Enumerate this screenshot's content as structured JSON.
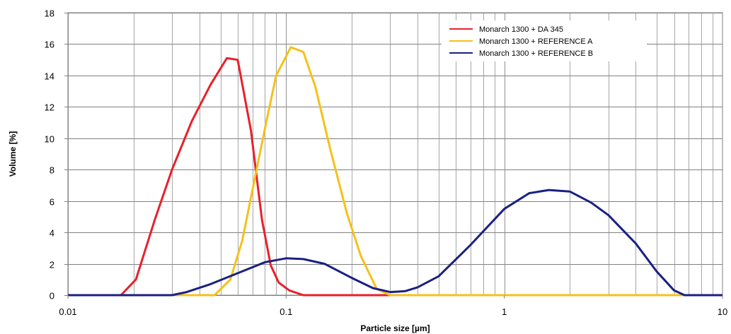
{
  "chart_data": {
    "type": "line",
    "xlabel": "Particle size [µm]",
    "ylabel": "Volume [%]",
    "xscale": "log",
    "xlim": [
      0.01,
      10
    ],
    "ylim": [
      0,
      18
    ],
    "x_ticks": [
      "0.01",
      "0.1",
      "1",
      "10"
    ],
    "y_ticks": [
      "0",
      "2",
      "4",
      "6",
      "8",
      "10",
      "12",
      "14",
      "16",
      "18"
    ],
    "grid": true,
    "legend_position": "top-right",
    "series": [
      {
        "name": "Monarch 1300 + DA 345",
        "color": "#e8202a",
        "x": [
          0.01,
          0.0175,
          0.0205,
          0.025,
          0.03,
          0.037,
          0.045,
          0.0535,
          0.06,
          0.069,
          0.0775,
          0.085,
          0.0925,
          0.1035,
          0.12,
          1.0,
          10
        ],
        "y": [
          0,
          0,
          1.0,
          4.8,
          8.0,
          11.1,
          13.4,
          15.1,
          15.0,
          10.5,
          4.8,
          1.9,
          0.8,
          0.3,
          0,
          0,
          0
        ]
      },
      {
        "name": "Monarch 1300 + REFERENCE A",
        "color": "#f5c11a",
        "x": [
          0.01,
          0.047,
          0.0555,
          0.063,
          0.072,
          0.081,
          0.09,
          0.105,
          0.12,
          0.136,
          0.16,
          0.19,
          0.22,
          0.26,
          0.3,
          1.0,
          10
        ],
        "y": [
          0,
          0,
          1.0,
          3.5,
          7.5,
          11.0,
          14.0,
          15.8,
          15.5,
          13.3,
          9.2,
          5.2,
          2.5,
          0.4,
          0,
          0,
          0
        ]
      },
      {
        "name": "Monarch 1300 + REFERENCE B",
        "color": "#1a2081",
        "x": [
          0.01,
          0.03,
          0.035,
          0.045,
          0.06,
          0.08,
          0.1,
          0.12,
          0.15,
          0.2,
          0.25,
          0.3,
          0.35,
          0.4,
          0.5,
          0.7,
          1.0,
          1.3,
          1.6,
          2.0,
          2.5,
          3.0,
          4.0,
          5.0,
          6.0,
          6.7,
          10
        ],
        "y": [
          0,
          0,
          0.2,
          0.7,
          1.4,
          2.1,
          2.35,
          2.3,
          2.0,
          1.1,
          0.45,
          0.2,
          0.25,
          0.5,
          1.2,
          3.2,
          5.5,
          6.5,
          6.7,
          6.6,
          5.9,
          5.1,
          3.3,
          1.5,
          0.3,
          0,
          0
        ]
      }
    ]
  }
}
